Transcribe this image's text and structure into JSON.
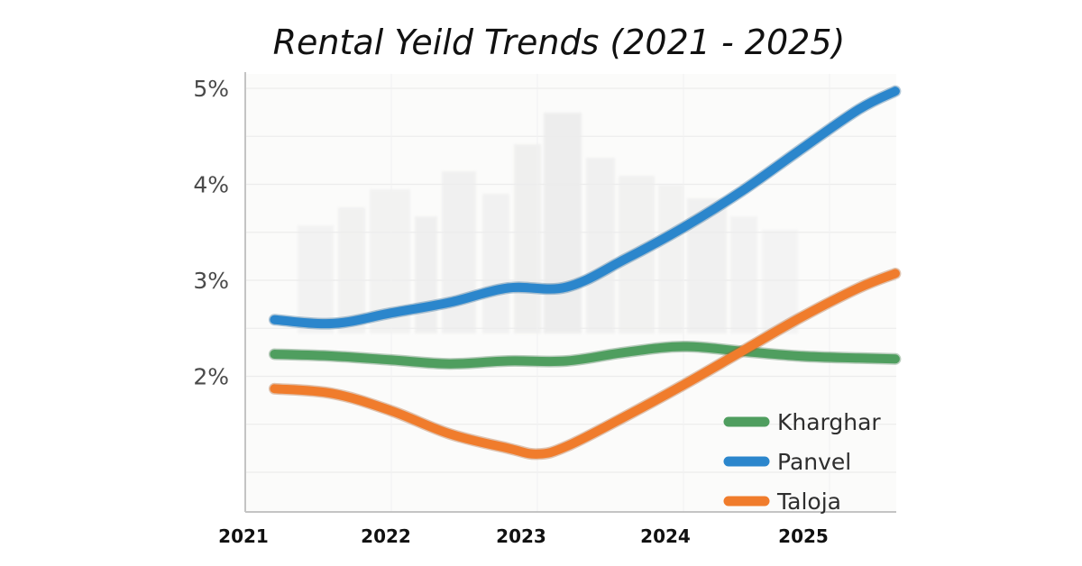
{
  "chart_data": {
    "type": "line",
    "title": "Rental Yeild Trends (2021 - 2025)",
    "x_tick_labels": [
      "2021",
      "2022",
      "2023",
      "2024",
      "2025"
    ],
    "y_tick_labels": [
      "5%",
      "4%",
      "3%",
      "2%"
    ],
    "y_ticks": [
      5,
      4,
      3,
      2
    ],
    "xlim": [
      2021,
      2025.5
    ],
    "ylim": [
      1.0,
      5.0
    ],
    "grid": true,
    "legend_position": "bottom-right",
    "series": [
      {
        "name": "Kharghar",
        "color": "#4f9e5f",
        "x": [
          2021.2,
          2021.6,
          2022.0,
          2022.4,
          2022.8,
          2023.2,
          2023.6,
          2024.0,
          2024.4,
          2024.8,
          2025.2,
          2025.45
        ],
        "values": [
          2.23,
          2.21,
          2.17,
          2.13,
          2.16,
          2.16,
          2.25,
          2.31,
          2.26,
          2.21,
          2.19,
          2.18
        ]
      },
      {
        "name": "Panvel",
        "color": "#2b86cc",
        "x": [
          2021.2,
          2021.6,
          2022.0,
          2022.4,
          2022.8,
          2023.2,
          2023.6,
          2024.0,
          2024.4,
          2024.8,
          2025.2,
          2025.45
        ],
        "values": [
          2.59,
          2.55,
          2.66,
          2.77,
          2.92,
          2.93,
          3.22,
          3.55,
          3.93,
          4.36,
          4.78,
          4.97
        ]
      },
      {
        "name": "Taloja",
        "color": "#f07c2c",
        "x": [
          2021.2,
          2021.6,
          2022.0,
          2022.4,
          2022.8,
          2023.0,
          2023.2,
          2023.6,
          2024.0,
          2024.4,
          2024.8,
          2025.2,
          2025.45
        ],
        "values": [
          1.87,
          1.82,
          1.64,
          1.4,
          1.25,
          1.19,
          1.27,
          1.58,
          1.91,
          2.26,
          2.61,
          2.92,
          3.07
        ]
      }
    ]
  }
}
